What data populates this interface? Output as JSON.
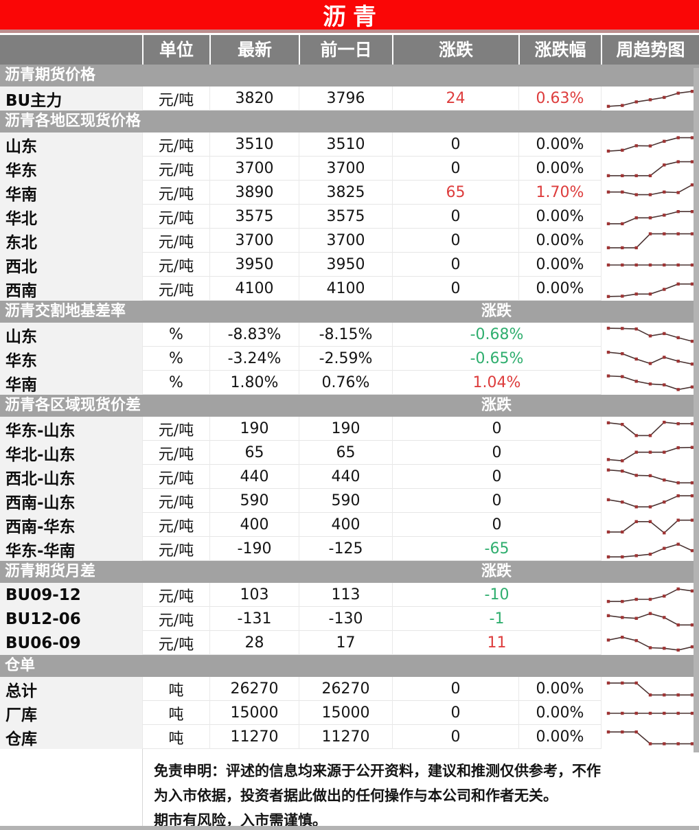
{
  "title": "沥青",
  "columns": [
    "单位",
    "最新",
    "前一日",
    "涨跌",
    "涨跌幅",
    "周趋势图"
  ],
  "colors": {
    "title_bg": "#fa0606",
    "header_bg": "#7f7f7f",
    "band_bg": "#a2a2a2",
    "label_bg": "#f2f2f2",
    "up_red": "#dd3c3c",
    "down_green": "#2fae6e",
    "spark_line": "#4a3332",
    "spark_marker": "#9e3434"
  },
  "sections": [
    {
      "name": "沥青期货价格",
      "change_label": "",
      "rows": [
        {
          "label": "BU主力",
          "unit": "元/吨",
          "latest": "3820",
          "prev": "3796",
          "change": "24",
          "change_dir": "up",
          "pct": "0.63%",
          "pct_dir": "up",
          "spark": [
            8,
            13,
            33,
            45,
            58,
            82,
            92
          ]
        }
      ]
    },
    {
      "name": "沥青各地区现货价格",
      "change_label": "",
      "rows": [
        {
          "label": "山东",
          "unit": "元/吨",
          "latest": "3510",
          "prev": "3510",
          "change": "0",
          "change_dir": "flat",
          "pct": "0.00%",
          "pct_dir": "flat",
          "spark": [
            15,
            20,
            45,
            44,
            70,
            90,
            90
          ]
        },
        {
          "label": "华东",
          "unit": "元/吨",
          "latest": "3700",
          "prev": "3700",
          "change": "0",
          "change_dir": "flat",
          "pct": "0.00%",
          "pct_dir": "flat",
          "spark": [
            12,
            12,
            12,
            12,
            72,
            90,
            90
          ]
        },
        {
          "label": "华南",
          "unit": "元/吨",
          "latest": "3890",
          "prev": "3825",
          "change": "65",
          "change_dir": "up",
          "pct": "1.70%",
          "pct_dir": "up",
          "spark": [
            55,
            55,
            40,
            40,
            55,
            52,
            95
          ]
        },
        {
          "label": "华北",
          "unit": "元/吨",
          "latest": "3575",
          "prev": "3575",
          "change": "0",
          "change_dir": "flat",
          "pct": "0.00%",
          "pct_dir": "flat",
          "spark": [
            12,
            12,
            45,
            45,
            60,
            80,
            80
          ]
        },
        {
          "label": "东北",
          "unit": "元/吨",
          "latest": "3700",
          "prev": "3700",
          "change": "0",
          "change_dir": "flat",
          "pct": "0.00%",
          "pct_dir": "flat",
          "spark": [
            12,
            12,
            12,
            90,
            90,
            90,
            90
          ]
        },
        {
          "label": "西北",
          "unit": "元/吨",
          "latest": "3950",
          "prev": "3950",
          "change": "0",
          "change_dir": "flat",
          "pct": "0.00%",
          "pct_dir": "flat",
          "spark": [
            50,
            50,
            50,
            50,
            50,
            50,
            50
          ]
        },
        {
          "label": "西南",
          "unit": "元/吨",
          "latest": "4100",
          "prev": "4100",
          "change": "0",
          "change_dir": "flat",
          "pct": "0.00%",
          "pct_dir": "flat",
          "spark": [
            8,
            10,
            22,
            22,
            48,
            78,
            78
          ]
        }
      ]
    },
    {
      "name": "沥青交割地基差率",
      "change_label": "涨跌",
      "rows": [
        {
          "label": "山东",
          "unit": "%",
          "latest": "-8.83%",
          "prev": "-8.15%",
          "change": "-0.68%",
          "change_dir": "down",
          "spark": [
            88,
            87,
            84,
            45,
            58,
            35,
            15
          ]
        },
        {
          "label": "华东",
          "unit": "%",
          "latest": "-3.24%",
          "prev": "-2.59%",
          "change": "-0.65%",
          "change_dir": "down",
          "spark": [
            88,
            80,
            50,
            25,
            60,
            38,
            22
          ]
        },
        {
          "label": "华南",
          "unit": "%",
          "latest": "1.80%",
          "prev": "0.76%",
          "change": "1.04%",
          "change_dir": "up",
          "spark": [
            90,
            86,
            60,
            45,
            40,
            14,
            28
          ]
        }
      ]
    },
    {
      "name": "沥青各区域现货价差",
      "change_label": "涨跌",
      "rows": [
        {
          "label": "华东-山东",
          "unit": "元/吨",
          "latest": "190",
          "prev": "190",
          "change": "0",
          "change_dir": "flat",
          "spark": [
            85,
            76,
            14,
            14,
            88,
            80,
            80
          ]
        },
        {
          "label": "华北-山东",
          "unit": "元/吨",
          "latest": "65",
          "prev": "65",
          "change": "0",
          "change_dir": "flat",
          "spark": [
            14,
            7,
            55,
            55,
            55,
            80,
            82
          ]
        },
        {
          "label": "西北-山东",
          "unit": "元/吨",
          "latest": "440",
          "prev": "440",
          "change": "0",
          "change_dir": "flat",
          "spark": [
            90,
            84,
            60,
            58,
            34,
            18,
            18
          ]
        },
        {
          "label": "西南-山东",
          "unit": "元/吨",
          "latest": "590",
          "prev": "590",
          "change": "0",
          "change_dir": "flat",
          "spark": [
            58,
            45,
            18,
            18,
            45,
            80,
            80
          ]
        },
        {
          "label": "西南-华东",
          "unit": "元/吨",
          "latest": "400",
          "prev": "400",
          "change": "0",
          "change_dir": "flat",
          "spark": [
            12,
            12,
            70,
            70,
            7,
            78,
            78
          ]
        },
        {
          "label": "华东-华南",
          "unit": "元/吨",
          "latest": "-190",
          "prev": "-125",
          "change": "-65",
          "change_dir": "down",
          "spark": [
            7,
            7,
            14,
            22,
            55,
            78,
            42
          ]
        }
      ]
    },
    {
      "name": "沥青期货月差",
      "change_label": "涨跌",
      "rows": [
        {
          "label": "BU09-12",
          "unit": "元/吨",
          "latest": "103",
          "prev": "113",
          "change": "-10",
          "change_dir": "down",
          "spark": [
            15,
            15,
            27,
            27,
            45,
            85,
            74
          ]
        },
        {
          "label": "BU12-06",
          "unit": "元/吨",
          "latest": "-131",
          "prev": "-130",
          "change": "-1",
          "change_dir": "down",
          "spark": [
            70,
            60,
            55,
            82,
            60,
            18,
            18
          ]
        },
        {
          "label": "BU06-09",
          "unit": "元/吨",
          "latest": "28",
          "prev": "17",
          "change": "11",
          "change_dir": "up",
          "spark": [
            68,
            84,
            65,
            25,
            22,
            12,
            30
          ]
        }
      ]
    },
    {
      "name": "仓单",
      "change_label": "",
      "rows": [
        {
          "label": "总计",
          "unit": "吨",
          "latest": "26270",
          "prev": "26270",
          "change": "0",
          "change_dir": "flat",
          "pct": "0.00%",
          "pct_dir": "flat",
          "spark": [
            85,
            85,
            85,
            18,
            18,
            18,
            18
          ]
        },
        {
          "label": "厂库",
          "unit": "吨",
          "latest": "15000",
          "prev": "15000",
          "change": "0",
          "change_dir": "flat",
          "pct": "0.00%",
          "pct_dir": "flat",
          "spark": [
            50,
            50,
            50,
            50,
            50,
            50,
            50
          ]
        },
        {
          "label": "仓库",
          "unit": "吨",
          "latest": "11270",
          "prev": "11270",
          "change": "0",
          "change_dir": "flat",
          "pct": "0.00%",
          "pct_dir": "flat",
          "spark": [
            80,
            80,
            80,
            14,
            14,
            14,
            14
          ]
        }
      ]
    }
  ],
  "disclaimer_lines": [
    "免责申明：评述的信息均来源于公开资料，建议和推测仅供参考，不作",
    "为入市依据，投资者据此做出的任何操作与本公司和作者无关。",
    "期市有风险，入市需谨慎。"
  ]
}
